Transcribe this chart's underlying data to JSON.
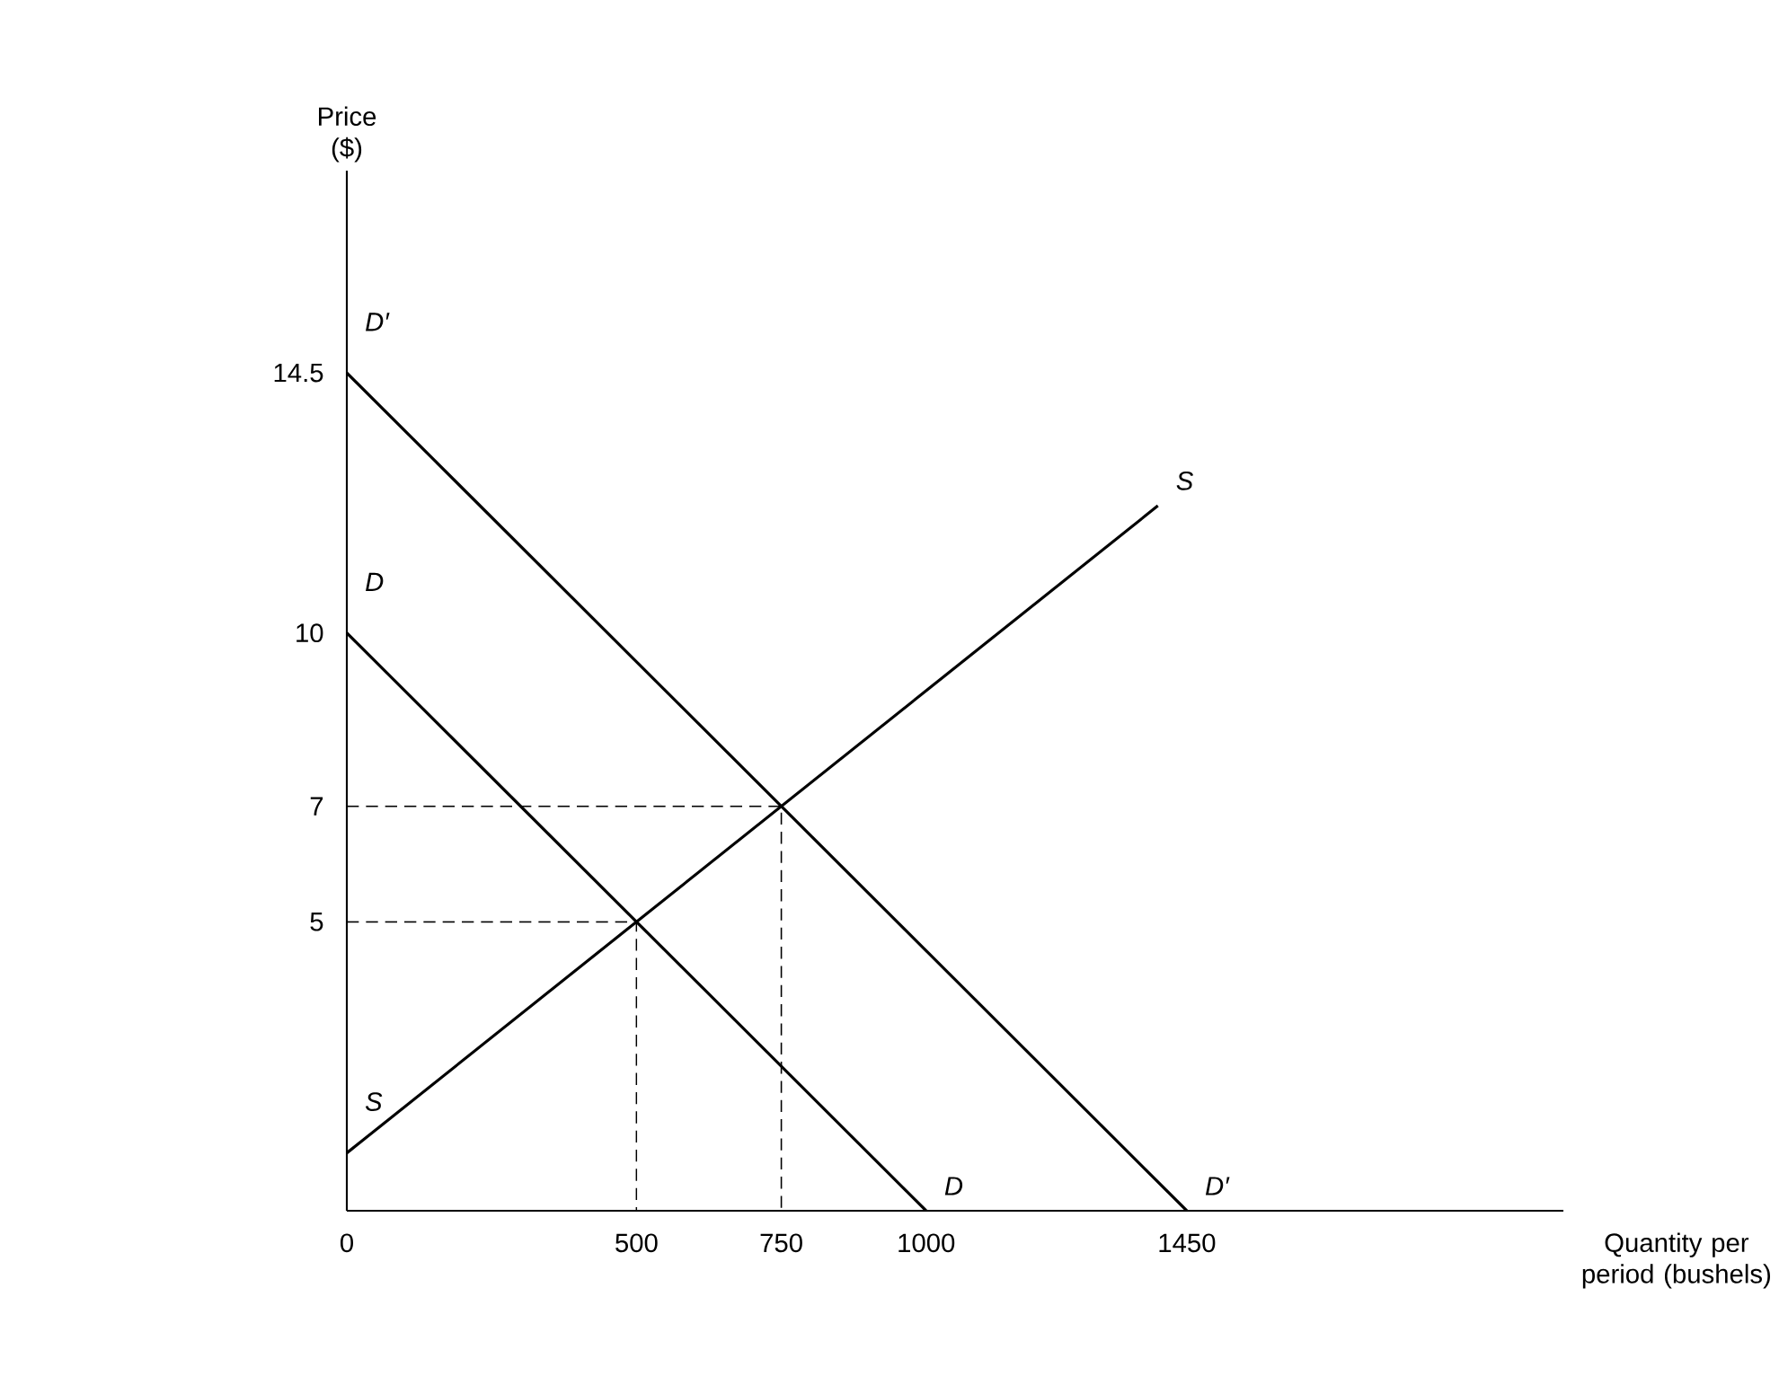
{
  "chart_data": {
    "type": "line",
    "xlabel": "Quantity per period (bushels)",
    "ylabel": "Price ($)",
    "xlim": [
      0,
      2100
    ],
    "ylim": [
      0,
      18
    ],
    "xticks": [
      0,
      500,
      750,
      1000,
      1450
    ],
    "yticks": [
      5,
      7,
      10,
      14.5
    ],
    "series": [
      {
        "name": "S",
        "color": "#000000",
        "x": [
          0,
          1400
        ],
        "values": [
          1,
          12.2
        ]
      },
      {
        "name": "D",
        "color": "#000000",
        "x": [
          0,
          1000
        ],
        "values": [
          10,
          0
        ]
      },
      {
        "name": "D′",
        "color": "#000000",
        "x": [
          0,
          1450
        ],
        "values": [
          14.5,
          0
        ]
      },
      {
        "color": "#000000",
        "x": [
          0,
          500,
          500
        ],
        "values": [
          5,
          5,
          0
        ],
        "line_style": "dashed"
      },
      {
        "color": "#000000",
        "x": [
          0,
          750,
          750
        ],
        "values": [
          7,
          7,
          0
        ],
        "line_style": "dashed"
      }
    ]
  }
}
